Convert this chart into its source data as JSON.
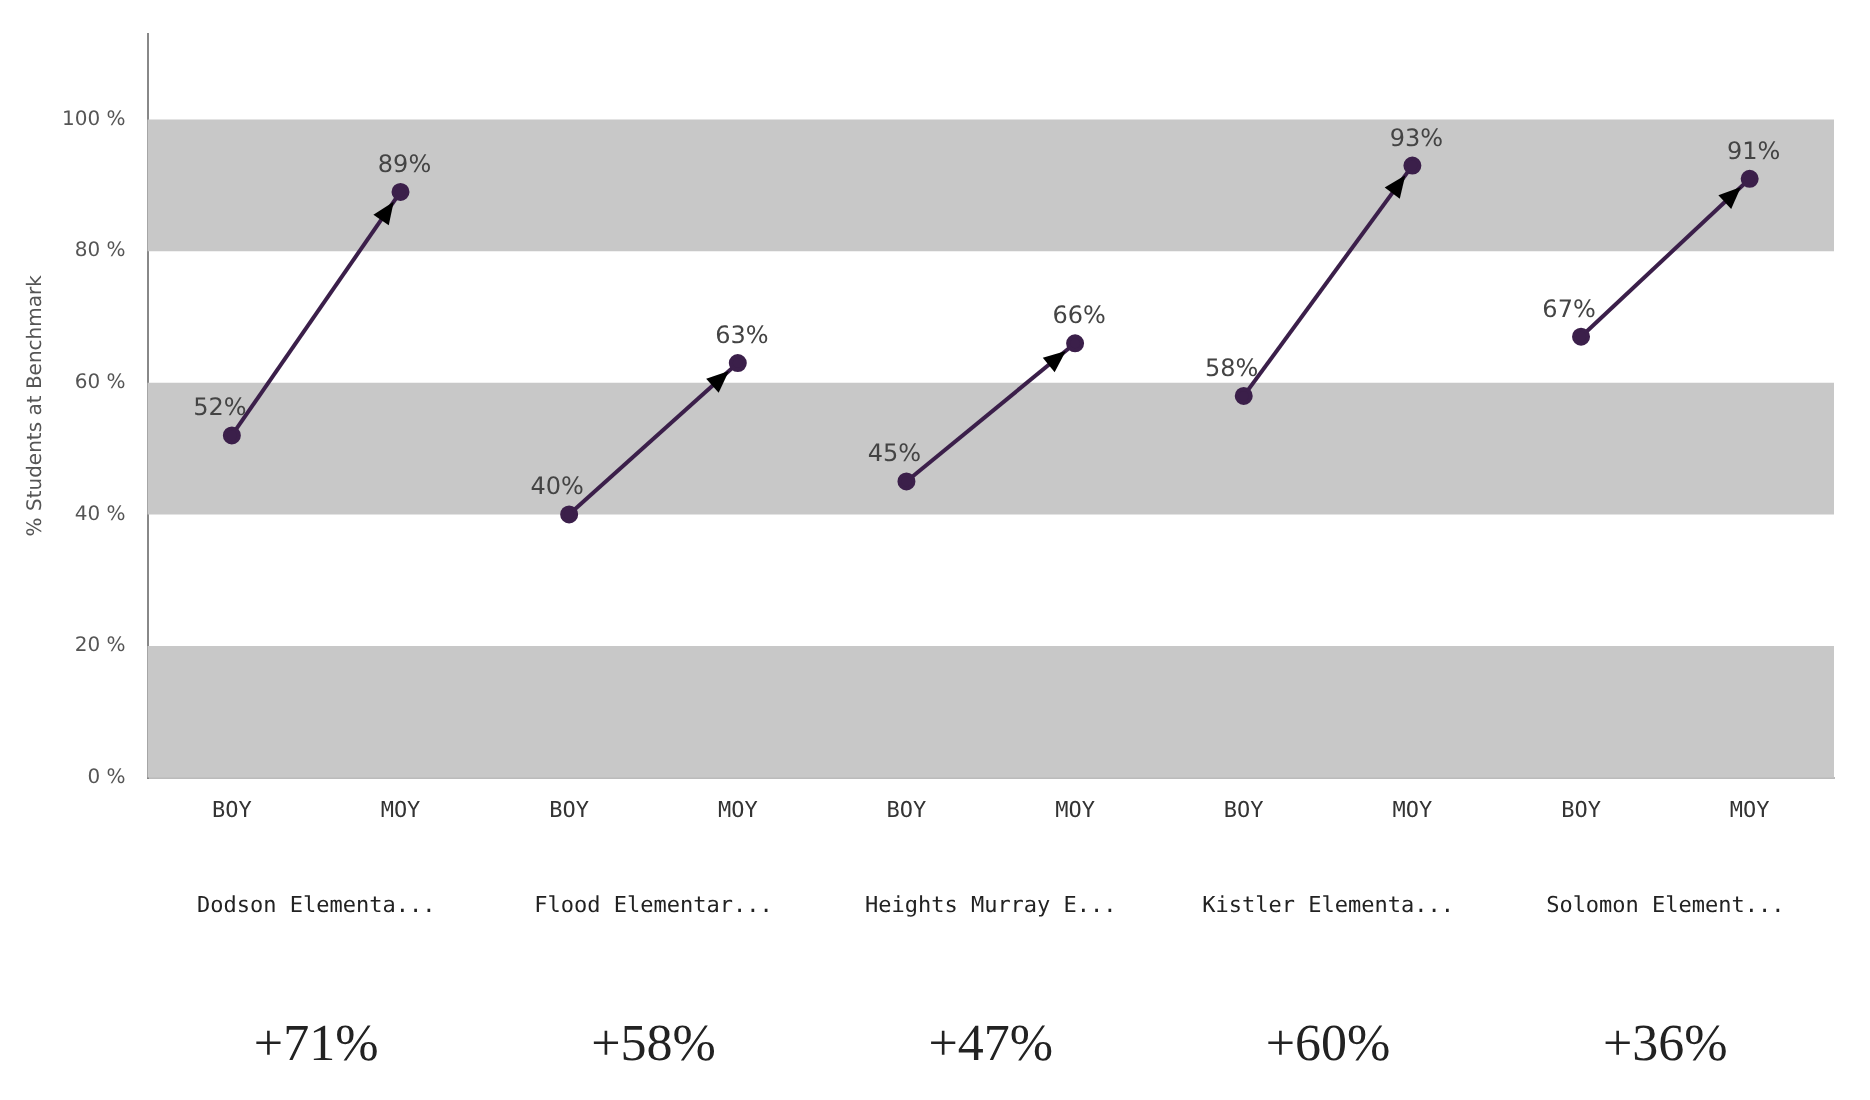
{
  "chart_data": {
    "type": "line",
    "ylabel": "% Students at Benchmark",
    "categories": [
      "BOY",
      "MOY",
      "BOY",
      "MOY",
      "BOY",
      "MOY",
      "BOY",
      "MOY",
      "BOY",
      "MOY"
    ],
    "series": [
      {
        "color": "#3b1f4a",
        "values": [
          52,
          89,
          null,
          null,
          null,
          null,
          null,
          null,
          null,
          null
        ],
        "value_labels": [
          "52%",
          "89%",
          null,
          null,
          null,
          null,
          null,
          null,
          null,
          null
        ]
      },
      {
        "color": "#3b1f4a",
        "values": [
          null,
          null,
          40,
          63,
          null,
          null,
          null,
          null,
          null,
          null
        ],
        "value_labels": [
          null,
          null,
          "40%",
          "63%",
          null,
          null,
          null,
          null,
          null,
          null
        ]
      },
      {
        "color": "#3b1f4a",
        "values": [
          null,
          null,
          null,
          null,
          45,
          66,
          null,
          null,
          null,
          null
        ],
        "value_labels": [
          null,
          null,
          null,
          null,
          "45%",
          "66%",
          null,
          null,
          null,
          null
        ]
      },
      {
        "color": "#3b1f4a",
        "values": [
          null,
          null,
          null,
          null,
          null,
          null,
          58,
          93,
          null,
          null
        ],
        "value_labels": [
          null,
          null,
          null,
          null,
          null,
          null,
          "58%",
          "93%",
          null,
          null
        ]
      },
      {
        "color": "#3b1f4a",
        "values": [
          null,
          null,
          null,
          null,
          null,
          null,
          null,
          null,
          67,
          91
        ],
        "value_labels": [
          null,
          null,
          null,
          null,
          null,
          null,
          null,
          null,
          "67%",
          "91%"
        ]
      }
    ],
    "ylim": [
      0,
      113
    ],
    "yticks": [
      {
        "value": 0,
        "label": "0 %"
      },
      {
        "value": 20,
        "label": "20 %"
      },
      {
        "value": 40,
        "label": "40 %"
      },
      {
        "value": 60,
        "label": "60 %"
      },
      {
        "value": 80,
        "label": "80 %"
      },
      {
        "value": 100,
        "label": "100 %"
      }
    ],
    "bands": [
      {
        "axis": "y",
        "from": 0,
        "to": 20,
        "color": "#c8c8c8"
      },
      {
        "axis": "y",
        "from": 40,
        "to": 60,
        "color": "#c8c8c8"
      },
      {
        "axis": "y",
        "from": 80,
        "to": 100,
        "color": "#c8c8c8"
      }
    ],
    "annotations": [
      "Dodson Elementa...",
      "Flood Elementar...",
      "Heights Murray E...",
      "Kistler Elementa...",
      "Solomon Element...",
      "+71%",
      "+58%",
      "+47%",
      "+60%",
      "+36%"
    ],
    "marker": "circle",
    "line_style": "solid",
    "grid": false,
    "legend": false
  }
}
